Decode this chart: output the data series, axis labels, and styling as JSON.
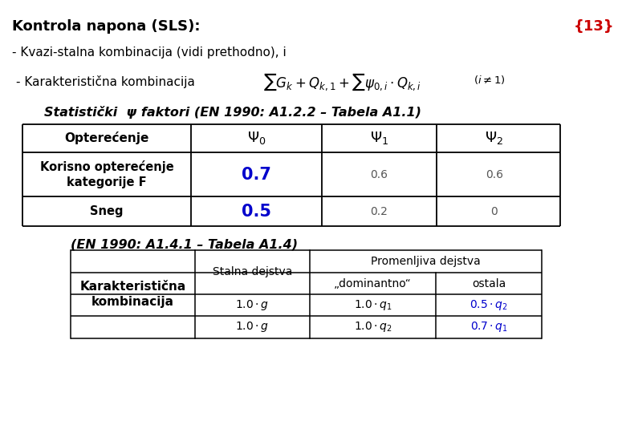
{
  "title": "Kontrola napona (SLS):",
  "title_number": "{13}",
  "title_color": "#000000",
  "title_number_color": "#cc0000",
  "bg_color": "#ffffff",
  "line1": "- Kvazi-stalna kombinacija (vidi prethodno), i",
  "line2": "- Karakteristična kombinacija",
  "stat_title": "Statistički  ψ faktori (EN 1990: A1.2.2 – Tabela A1.1)",
  "blue_color": "#0000cc",
  "table2_title": "(EN 1990: A1.4.1 – Tabela A1.4)",
  "table2_col_header1": "Stalna dejstva",
  "table2_col_header2": "Promenljiva dejstva",
  "table2_sub_header1": "„dominantno“",
  "table2_sub_header2": "ostala",
  "table2_row_label": "Karakteristična\nkombinacija"
}
